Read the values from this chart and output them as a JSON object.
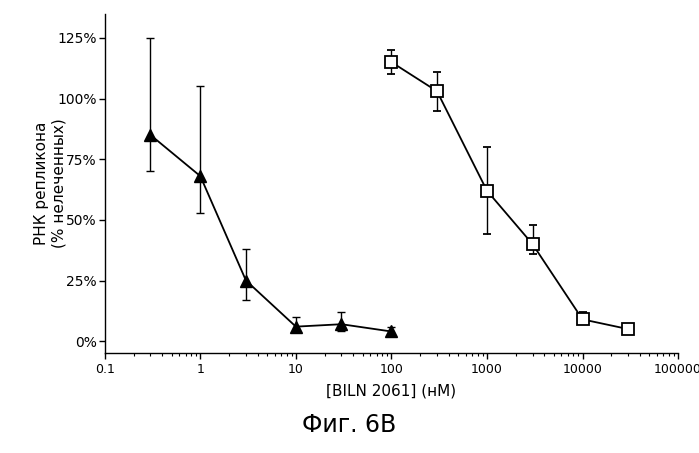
{
  "triangles_x": [
    0.3,
    1.0,
    3.0,
    10.0,
    30.0,
    100.0
  ],
  "triangles_y": [
    85,
    68,
    25,
    6,
    7,
    4
  ],
  "triangles_yerr_upper": [
    40,
    37,
    13,
    4,
    5,
    2
  ],
  "triangles_yerr_lower": [
    15,
    15,
    8,
    2,
    3,
    1
  ],
  "squares_x": [
    100,
    300,
    1000,
    3000,
    10000,
    30000
  ],
  "squares_y": [
    115,
    103,
    62,
    40,
    9,
    5
  ],
  "squares_yerr_upper": [
    5,
    8,
    18,
    8,
    3,
    2
  ],
  "squares_yerr_lower": [
    5,
    8,
    18,
    4,
    2,
    1
  ],
  "xlabel": "[BILN 2061] (нМ)",
  "ylabel": "РНК репликона\n(% нелеченных)",
  "caption": "Фиг. 6В",
  "xlim": [
    0.1,
    100000
  ],
  "ylim": [
    -5,
    135
  ],
  "yticks": [
    0,
    25,
    50,
    75,
    100,
    125
  ],
  "ytick_labels": [
    "0%",
    "25%",
    "50%",
    "75%",
    "100%",
    "125%"
  ],
  "background_color": "#ffffff",
  "line_color": "#000000",
  "marker_fill_triangle": "#000000",
  "marker_fill_square": "#ffffff",
  "marker_edge_color": "#000000"
}
